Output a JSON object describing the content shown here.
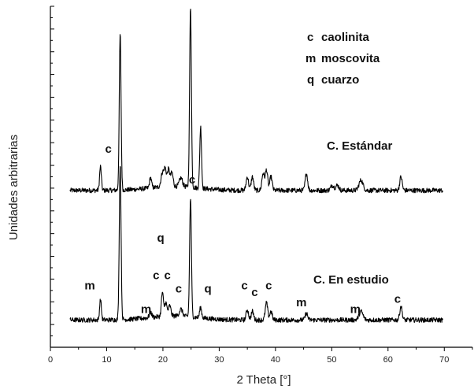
{
  "chart_data": {
    "type": "line",
    "xlabel": "2 Theta [°]",
    "ylabel": "Unidades arbitrarias",
    "xlim": [
      0,
      75
    ],
    "xticks": [
      0,
      10,
      20,
      30,
      40,
      50,
      60,
      70
    ],
    "ylim": [
      0,
      100
    ],
    "legend": {
      "placement": "top-right",
      "entries": [
        {
          "symbol": "c",
          "name": "caolinita"
        },
        {
          "symbol": "m",
          "name": "moscovita"
        },
        {
          "symbol": "q",
          "name": "cuarzo"
        }
      ]
    },
    "series": [
      {
        "name": "C. Estándar",
        "baseline": 46,
        "noise": 0.7,
        "x_range": [
          3.5,
          69.8
        ],
        "peaks": [
          {
            "x": 8.9,
            "h": 7,
            "w": 0.22
          },
          {
            "x": 12.4,
            "h": 46,
            "w": 0.22
          },
          {
            "x": 17.8,
            "h": 3,
            "w": 0.25
          },
          {
            "x": 19.9,
            "h": 4,
            "w": 0.35
          },
          {
            "x": 20.4,
            "h": 5,
            "w": 0.3
          },
          {
            "x": 21.0,
            "h": 5,
            "w": 0.3
          },
          {
            "x": 21.6,
            "h": 4,
            "w": 0.3
          },
          {
            "x": 23.2,
            "h": 2.5,
            "w": 0.4
          },
          {
            "x": 24.9,
            "h": 53,
            "w": 0.22
          },
          {
            "x": 26.7,
            "h": 18,
            "w": 0.22
          },
          {
            "x": 35.0,
            "h": 4,
            "w": 0.3
          },
          {
            "x": 35.9,
            "h": 4,
            "w": 0.3
          },
          {
            "x": 37.8,
            "h": 5,
            "w": 0.3
          },
          {
            "x": 38.4,
            "h": 6,
            "w": 0.3
          },
          {
            "x": 39.2,
            "h": 4,
            "w": 0.3
          },
          {
            "x": 45.5,
            "h": 5,
            "w": 0.3
          },
          {
            "x": 50.1,
            "h": 1.5,
            "w": 0.4
          },
          {
            "x": 51.0,
            "h": 1.5,
            "w": 0.4
          },
          {
            "x": 55.2,
            "h": 3,
            "w": 0.5
          },
          {
            "x": 62.3,
            "h": 4,
            "w": 0.3
          }
        ]
      },
      {
        "name": "C. En estudio",
        "baseline": 8,
        "noise": 0.7,
        "x_range": [
          3.5,
          69.8
        ],
        "peaks": [
          {
            "x": 8.9,
            "h": 6,
            "w": 0.22
          },
          {
            "x": 12.4,
            "h": 46,
            "w": 0.22
          },
          {
            "x": 17.8,
            "h": 1.5,
            "w": 0.3
          },
          {
            "x": 19.9,
            "h": 7,
            "w": 0.25
          },
          {
            "x": 20.5,
            "h": 4,
            "w": 0.3
          },
          {
            "x": 21.2,
            "h": 3,
            "w": 0.3
          },
          {
            "x": 23.2,
            "h": 2,
            "w": 0.4
          },
          {
            "x": 24.9,
            "h": 35,
            "w": 0.22
          },
          {
            "x": 26.7,
            "h": 3,
            "w": 0.25
          },
          {
            "x": 35.0,
            "h": 3,
            "w": 0.3
          },
          {
            "x": 35.9,
            "h": 2.5,
            "w": 0.3
          },
          {
            "x": 38.4,
            "h": 5,
            "w": 0.3
          },
          {
            "x": 39.2,
            "h": 2.5,
            "w": 0.3
          },
          {
            "x": 45.5,
            "h": 2,
            "w": 0.3
          },
          {
            "x": 55.2,
            "h": 2.5,
            "w": 0.5
          },
          {
            "x": 62.3,
            "h": 4,
            "w": 0.3
          }
        ]
      }
    ],
    "peak_labels": [
      {
        "text": "c",
        "x": 10.3,
        "y": 57
      },
      {
        "text": "c",
        "x": 25.2,
        "y": 48
      },
      {
        "text": "q",
        "x": 19.6,
        "y": 31
      },
      {
        "text": "m",
        "x": 7.0,
        "y": 17
      },
      {
        "text": "c",
        "x": 18.8,
        "y": 20
      },
      {
        "text": "c",
        "x": 20.8,
        "y": 20
      },
      {
        "text": "c",
        "x": 22.8,
        "y": 16
      },
      {
        "text": "q",
        "x": 28.0,
        "y": 16
      },
      {
        "text": "m",
        "x": 17.0,
        "y": 10
      },
      {
        "text": "c",
        "x": 34.5,
        "y": 17
      },
      {
        "text": "c",
        "x": 36.3,
        "y": 15
      },
      {
        "text": "c",
        "x": 38.8,
        "y": 17
      },
      {
        "text": "m",
        "x": 44.6,
        "y": 12
      },
      {
        "text": "m",
        "x": 54.2,
        "y": 10
      },
      {
        "text": "c",
        "x": 61.7,
        "y": 13
      }
    ]
  }
}
